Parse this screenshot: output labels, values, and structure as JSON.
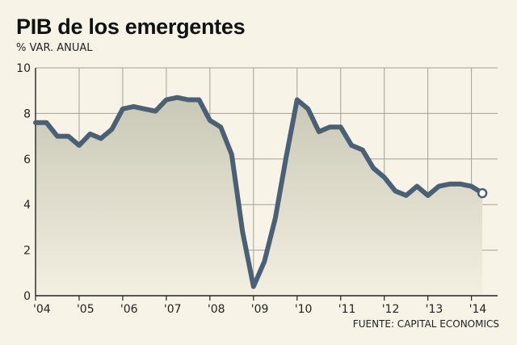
{
  "chart_data": {
    "type": "area",
    "title": "PIB de los emergentes",
    "subtitle": "% VAR. ANUAL",
    "source": "FUENTE: CAPITAL ECONOMICS",
    "ylim": [
      0,
      10
    ],
    "yticks": [
      "0",
      "2",
      "4",
      "6",
      "8",
      "10"
    ],
    "xlim": [
      2004,
      2014.6
    ],
    "xticks": [
      "'04",
      "'05",
      "'06",
      "'07",
      "'08",
      "'09",
      "'10",
      "'11",
      "'12",
      "'13",
      "'14"
    ],
    "grid": true,
    "x": [
      2004.0,
      2004.25,
      2004.5,
      2004.75,
      2005.0,
      2005.25,
      2005.5,
      2005.75,
      2006.0,
      2006.25,
      2006.5,
      2006.75,
      2007.0,
      2007.25,
      2007.5,
      2007.75,
      2008.0,
      2008.25,
      2008.5,
      2008.75,
      2009.0,
      2009.25,
      2009.5,
      2009.75,
      2010.0,
      2010.25,
      2010.5,
      2010.75,
      2011.0,
      2011.25,
      2011.5,
      2011.75,
      2012.0,
      2012.25,
      2012.5,
      2012.75,
      2013.0,
      2013.25,
      2013.5,
      2013.75,
      2014.0,
      2014.25
    ],
    "values": [
      7.6,
      7.6,
      7.0,
      7.0,
      6.6,
      7.1,
      6.9,
      7.3,
      8.2,
      8.3,
      8.2,
      8.1,
      8.6,
      8.7,
      8.6,
      8.6,
      7.7,
      7.4,
      6.2,
      2.8,
      0.4,
      1.5,
      3.4,
      6.1,
      8.6,
      8.2,
      7.2,
      7.4,
      7.4,
      6.6,
      6.4,
      5.6,
      5.2,
      4.6,
      4.4,
      4.8,
      4.4,
      4.8,
      4.9,
      4.9,
      4.8,
      4.5
    ]
  }
}
